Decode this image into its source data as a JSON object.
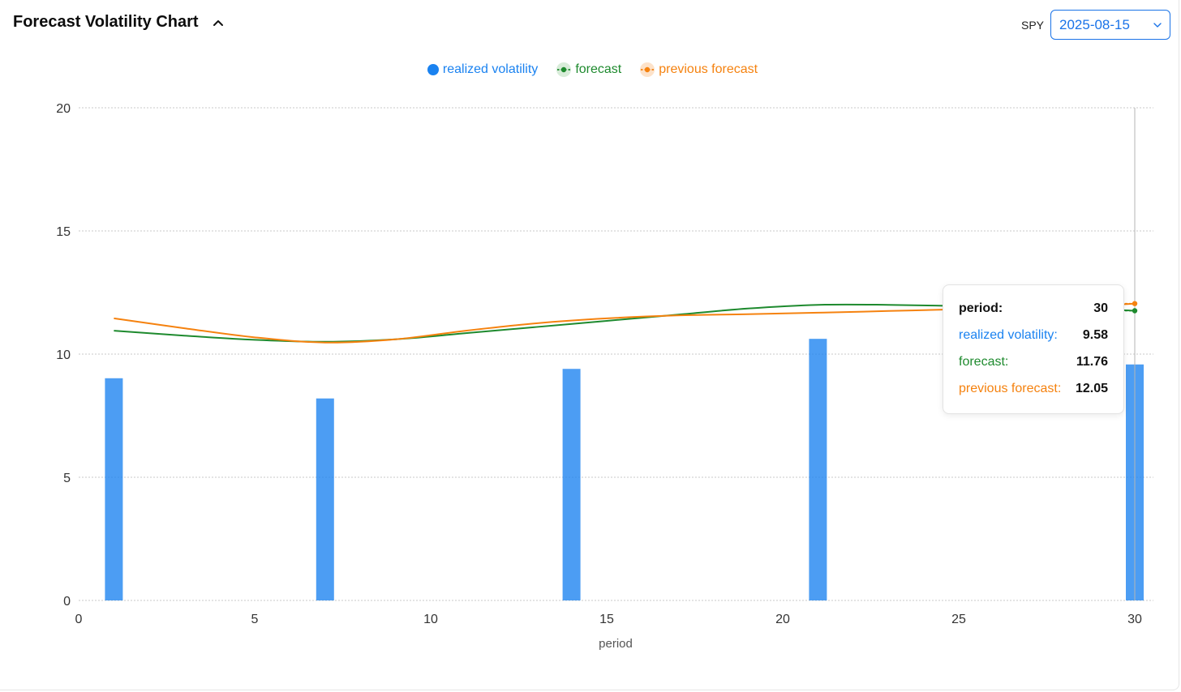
{
  "header": {
    "title": "Forecast Volatility Chart",
    "ticker": "SPY",
    "date": "2025-08-15"
  },
  "legend": [
    {
      "label": "realized volatility",
      "color": "#1a82f0"
    },
    {
      "label": "forecast",
      "color": "#1e8a2e"
    },
    {
      "label": "previous forecast",
      "color": "#f5820f"
    }
  ],
  "tooltip": {
    "period_label": "period:",
    "period_value": "30",
    "rv_label": "realized volatility:",
    "rv_value": "9.58",
    "fc_label": "forecast:",
    "fc_value": "11.76",
    "pf_label": "previous forecast:",
    "pf_value": "12.05"
  },
  "chart_data": {
    "type": "bar+line",
    "xlabel": "period",
    "ylabel": "",
    "xlim": [
      0,
      30
    ],
    "ylim": [
      0,
      20
    ],
    "x_ticks": [
      0,
      5,
      10,
      15,
      20,
      25,
      30
    ],
    "y_ticks": [
      0,
      5,
      10,
      15,
      20
    ],
    "grid": true,
    "legend_position": "top-center",
    "bars": {
      "name": "realized volatility",
      "color": "#1a82f0",
      "x": [
        1,
        7,
        14,
        21,
        30
      ],
      "values": [
        9.02,
        8.2,
        9.4,
        10.62,
        9.58
      ]
    },
    "series": [
      {
        "name": "forecast",
        "color": "#1e8a2e",
        "x": [
          1,
          3,
          5,
          7,
          9,
          11,
          13,
          15,
          17,
          19,
          21,
          23,
          25,
          27,
          29,
          30
        ],
        "values": [
          10.95,
          10.75,
          10.58,
          10.5,
          10.6,
          10.85,
          11.1,
          11.35,
          11.6,
          11.85,
          12.0,
          12.0,
          11.95,
          11.9,
          11.82,
          11.76
        ]
      },
      {
        "name": "previous forecast",
        "color": "#f5820f",
        "x": [
          1,
          3,
          5,
          7,
          9,
          11,
          13,
          15,
          17,
          19,
          21,
          23,
          25,
          27,
          29,
          30
        ],
        "values": [
          11.45,
          11.05,
          10.68,
          10.47,
          10.6,
          10.95,
          11.25,
          11.45,
          11.57,
          11.62,
          11.68,
          11.75,
          11.82,
          11.9,
          11.98,
          12.05
        ]
      }
    ],
    "hover": {
      "x": 30
    }
  }
}
